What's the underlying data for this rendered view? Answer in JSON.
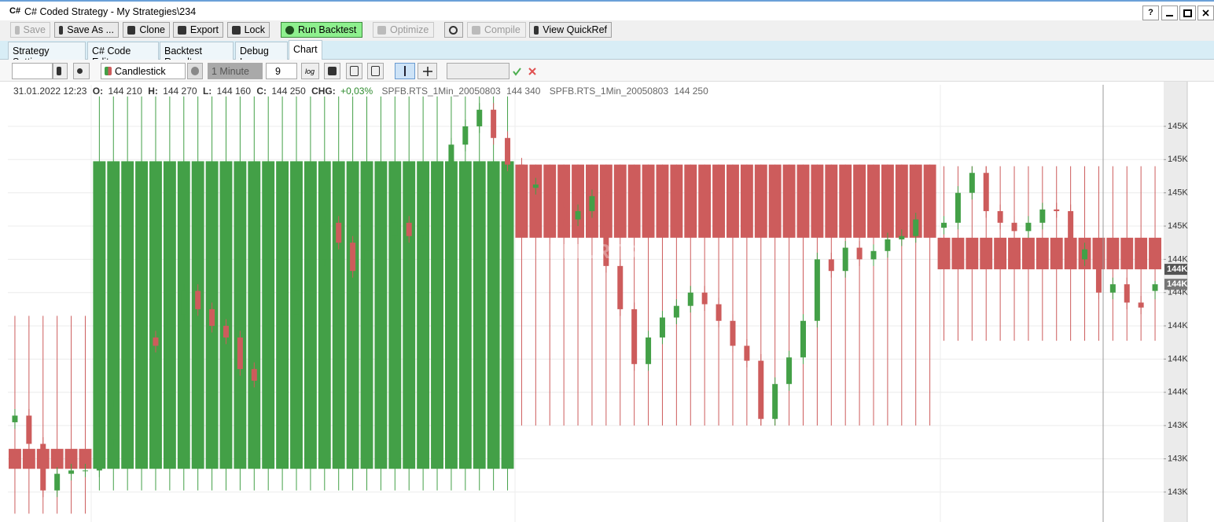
{
  "window": {
    "icon": "C#",
    "title": "C# Coded Strategy - My Strategies\\234",
    "help": "?"
  },
  "toolbar": {
    "save": "Save",
    "save_as": "Save As ...",
    "clone": "Clone",
    "export": "Export",
    "lock": "Lock",
    "run": "Run Backtest",
    "optimize": "Optimize",
    "compile": "Compile",
    "quickref": "View QuickRef"
  },
  "tabs": {
    "items": [
      "Strategy Settings",
      "C# Code Editor",
      "Backtest Results",
      "Debug Log",
      "Chart"
    ]
  },
  "chart_toolbar": {
    "chart_type": "Candlestick",
    "interval": "1 Minute",
    "spacing": "9",
    "log": "log"
  },
  "chart_data": {
    "type": "candlestick",
    "date": "31.01.2022 12:23",
    "ohlc": [
      {
        "label": "O:",
        "value": "144 210"
      },
      {
        "label": "H:",
        "value": "144 270"
      },
      {
        "label": "L:",
        "value": "144 160"
      },
      {
        "label": "C:",
        "value": "144 250"
      }
    ],
    "chg_label": "CHG:",
    "chg": "+0,03%",
    "watermark": "SPFB.RTS",
    "ylim": [
      142820,
      145450
    ],
    "yticks": [
      {
        "value": 145200,
        "label": "145K"
      },
      {
        "value": 145000,
        "label": "145K"
      },
      {
        "value": 144800,
        "label": "145K"
      },
      {
        "value": 144600,
        "label": "145K"
      },
      {
        "value": 144400,
        "label": "144K"
      },
      {
        "value": 144200,
        "label": "144K"
      },
      {
        "value": 144000,
        "label": "144K"
      },
      {
        "value": 143800,
        "label": "144K"
      },
      {
        "value": 143600,
        "label": "144K"
      },
      {
        "value": 143400,
        "label": "143K"
      },
      {
        "value": 143200,
        "label": "143K"
      },
      {
        "value": 143000,
        "label": "143K"
      }
    ],
    "grid": true,
    "series": [
      {
        "name": "SPFB.RTS_1Min_20050803",
        "last_label": "144 340",
        "price_tag": "144K",
        "up_color": "#43a047",
        "down_color": "#cd5c5c",
        "tag_color": "#555555",
        "open": [
          143260,
          143260,
          143260,
          143260,
          143260,
          143260,
          143140,
          143140,
          143140,
          143140,
          143140,
          143140,
          143140,
          143140,
          143140,
          143140,
          143140,
          143140,
          143140,
          143140,
          143140,
          143140,
          143140,
          143140,
          143140,
          143140,
          143140,
          143140,
          143140,
          143140,
          143140,
          143140,
          143140,
          143140,
          143140,
          143140,
          144970,
          144970,
          144970,
          144970,
          144970,
          144970,
          144970,
          144970,
          144970,
          144970,
          144970,
          144970,
          144970,
          144970,
          144970,
          144970,
          144970,
          144970,
          144970,
          144970,
          144970,
          144970,
          144970,
          144970,
          144970,
          144970,
          144970,
          144970,
          144970,
          144970,
          144530,
          144530,
          144530,
          144530,
          144530,
          144530,
          144530,
          144530,
          144530,
          144530,
          144530,
          144530,
          144530,
          144530,
          144530,
          144530
        ],
        "high": [
          144060,
          144060,
          144060,
          144060,
          144060,
          144060,
          145380,
          145380,
          145380,
          145380,
          145380,
          145380,
          145380,
          145380,
          145380,
          145380,
          145380,
          145380,
          145380,
          145380,
          145380,
          145380,
          145380,
          145380,
          145380,
          145380,
          145380,
          145380,
          145380,
          145380,
          145380,
          145380,
          145380,
          145380,
          145380,
          145380,
          144970,
          144970,
          144970,
          144970,
          144970,
          144970,
          144970,
          144970,
          144970,
          144970,
          144970,
          144970,
          144970,
          144970,
          144970,
          144970,
          144970,
          144970,
          144970,
          144970,
          144970,
          144970,
          144970,
          144970,
          144970,
          144970,
          144970,
          144970,
          144970,
          144970,
          144960,
          144960,
          144960,
          144960,
          144960,
          144960,
          144960,
          144960,
          144960,
          144960,
          144960,
          144960,
          144960,
          144960,
          144960,
          144960
        ],
        "low": [
          142870,
          142870,
          142870,
          142870,
          142870,
          142870,
          143010,
          143010,
          143010,
          143010,
          143010,
          143010,
          143010,
          143010,
          143010,
          143010,
          143010,
          143010,
          143010,
          143010,
          143010,
          143010,
          143010,
          143010,
          143010,
          143010,
          143010,
          143010,
          143010,
          143010,
          143010,
          143010,
          143010,
          143010,
          143010,
          143010,
          143400,
          143400,
          143400,
          143400,
          143400,
          143400,
          143400,
          143400,
          143400,
          143400,
          143400,
          143400,
          143400,
          143400,
          143400,
          143400,
          143400,
          143400,
          143400,
          143400,
          143400,
          143400,
          143400,
          143400,
          143400,
          143400,
          143400,
          143400,
          143400,
          143400,
          143910,
          143910,
          143910,
          143910,
          143910,
          143910,
          143910,
          143910,
          143910,
          143910,
          143910,
          143910,
          143910,
          143910,
          143910,
          143910
        ],
        "close": [
          143140,
          143140,
          143140,
          143140,
          143140,
          143140,
          144990,
          144990,
          144990,
          144990,
          144990,
          144990,
          144990,
          144990,
          144990,
          144990,
          144990,
          144990,
          144990,
          144990,
          144990,
          144990,
          144990,
          144990,
          144990,
          144990,
          144990,
          144990,
          144990,
          144990,
          144990,
          144990,
          144990,
          144990,
          144990,
          144990,
          144530,
          144530,
          144530,
          144530,
          144530,
          144530,
          144530,
          144530,
          144530,
          144530,
          144530,
          144530,
          144530,
          144530,
          144530,
          144530,
          144530,
          144530,
          144530,
          144530,
          144530,
          144530,
          144530,
          144530,
          144530,
          144530,
          144530,
          144530,
          144530,
          144530,
          144340,
          144340,
          144340,
          144340,
          144340,
          144340,
          144340,
          144340,
          144340,
          144340,
          144340,
          144340,
          144340,
          144340,
          144340,
          144340
        ]
      },
      {
        "name": "SPFB.RTS_1Min_20050803",
        "last_label": "144 250",
        "price_tag": "144K",
        "up_color": "#43a047",
        "down_color": "#cd5c5c",
        "tag_color": "#777777",
        "open": [
          143420,
          143460,
          143290,
          143010,
          143110,
          143130,
          143130,
          143320,
          143510,
          143740,
          143930,
          143880,
          144070,
          144210,
          144100,
          144000,
          143930,
          143740,
          143670,
          143880,
          144070,
          144210,
          144400,
          144620,
          144500,
          144330,
          144450,
          144540,
          144620,
          144540,
          144690,
          144830,
          145090,
          145200,
          145300,
          145130,
          144970,
          144830,
          144850,
          144710,
          144640,
          144690,
          144780,
          144360,
          144100,
          143770,
          143930,
          144050,
          144120,
          144200,
          144130,
          144030,
          143880,
          143790,
          143440,
          143650,
          143810,
          144030,
          144400,
          144330,
          144470,
          144400,
          144450,
          144520,
          144540,
          144640,
          144590,
          144620,
          144800,
          144920,
          144690,
          144620,
          144570,
          144620,
          144700,
          144690,
          144400,
          144460,
          144200,
          144250,
          144140,
          144210
        ],
        "high": [
          143500,
          143500,
          143330,
          143150,
          143170,
          143170,
          143360,
          143550,
          143780,
          143970,
          143970,
          144110,
          144250,
          144250,
          144140,
          144040,
          143970,
          143780,
          143920,
          144110,
          144250,
          144440,
          144660,
          144660,
          144540,
          144490,
          144580,
          144660,
          144660,
          144730,
          144870,
          145130,
          145240,
          145340,
          145340,
          145170,
          145010,
          144890,
          144890,
          144750,
          144730,
          144820,
          144820,
          144400,
          144140,
          143970,
          144090,
          144160,
          144240,
          144240,
          144170,
          144070,
          143920,
          143830,
          143690,
          143850,
          144070,
          144440,
          144440,
          144510,
          144510,
          144490,
          144560,
          144580,
          144680,
          144680,
          144660,
          144840,
          144960,
          144960,
          144730,
          144660,
          144660,
          144740,
          144740,
          144730,
          144500,
          144500,
          144290,
          144290,
          144180,
          144270
        ],
        "low": [
          143380,
          143250,
          142970,
          142970,
          143070,
          143090,
          143090,
          143280,
          143470,
          143700,
          143840,
          143840,
          144030,
          144060,
          143960,
          143890,
          143700,
          143630,
          143630,
          143840,
          144030,
          144170,
          144360,
          144460,
          144290,
          144290,
          144410,
          144500,
          144500,
          144500,
          144650,
          144790,
          145050,
          145160,
          145090,
          144930,
          144790,
          144790,
          144670,
          144600,
          144600,
          144650,
          144320,
          144060,
          143730,
          143730,
          143890,
          144010,
          144080,
          144090,
          143990,
          143840,
          143750,
          143400,
          143400,
          143610,
          143770,
          143990,
          144290,
          144290,
          144360,
          144360,
          144410,
          144480,
          144500,
          144550,
          144550,
          144580,
          144760,
          144650,
          144580,
          144530,
          144530,
          144580,
          144650,
          144360,
          144360,
          144160,
          144160,
          144100,
          144070,
          144160
        ],
        "close": [
          143460,
          143290,
          143010,
          143110,
          143130,
          143130,
          143320,
          143510,
          143740,
          143930,
          143880,
          144070,
          144210,
          144100,
          144000,
          143930,
          143740,
          143670,
          143880,
          144070,
          144210,
          144400,
          144620,
          144500,
          144330,
          144450,
          144540,
          144620,
          144540,
          144690,
          144830,
          145090,
          145200,
          145300,
          145130,
          144970,
          144830,
          144850,
          144710,
          144640,
          144690,
          144780,
          144360,
          144100,
          143770,
          143930,
          144050,
          144120,
          144200,
          144130,
          144030,
          143880,
          143790,
          143440,
          143650,
          143810,
          144030,
          144400,
          144330,
          144470,
          144400,
          144450,
          144520,
          144540,
          144640,
          144590,
          144620,
          144800,
          144920,
          144690,
          144620,
          144570,
          144620,
          144700,
          144690,
          144400,
          144460,
          144200,
          144250,
          144140,
          144110,
          144250
        ]
      }
    ]
  }
}
